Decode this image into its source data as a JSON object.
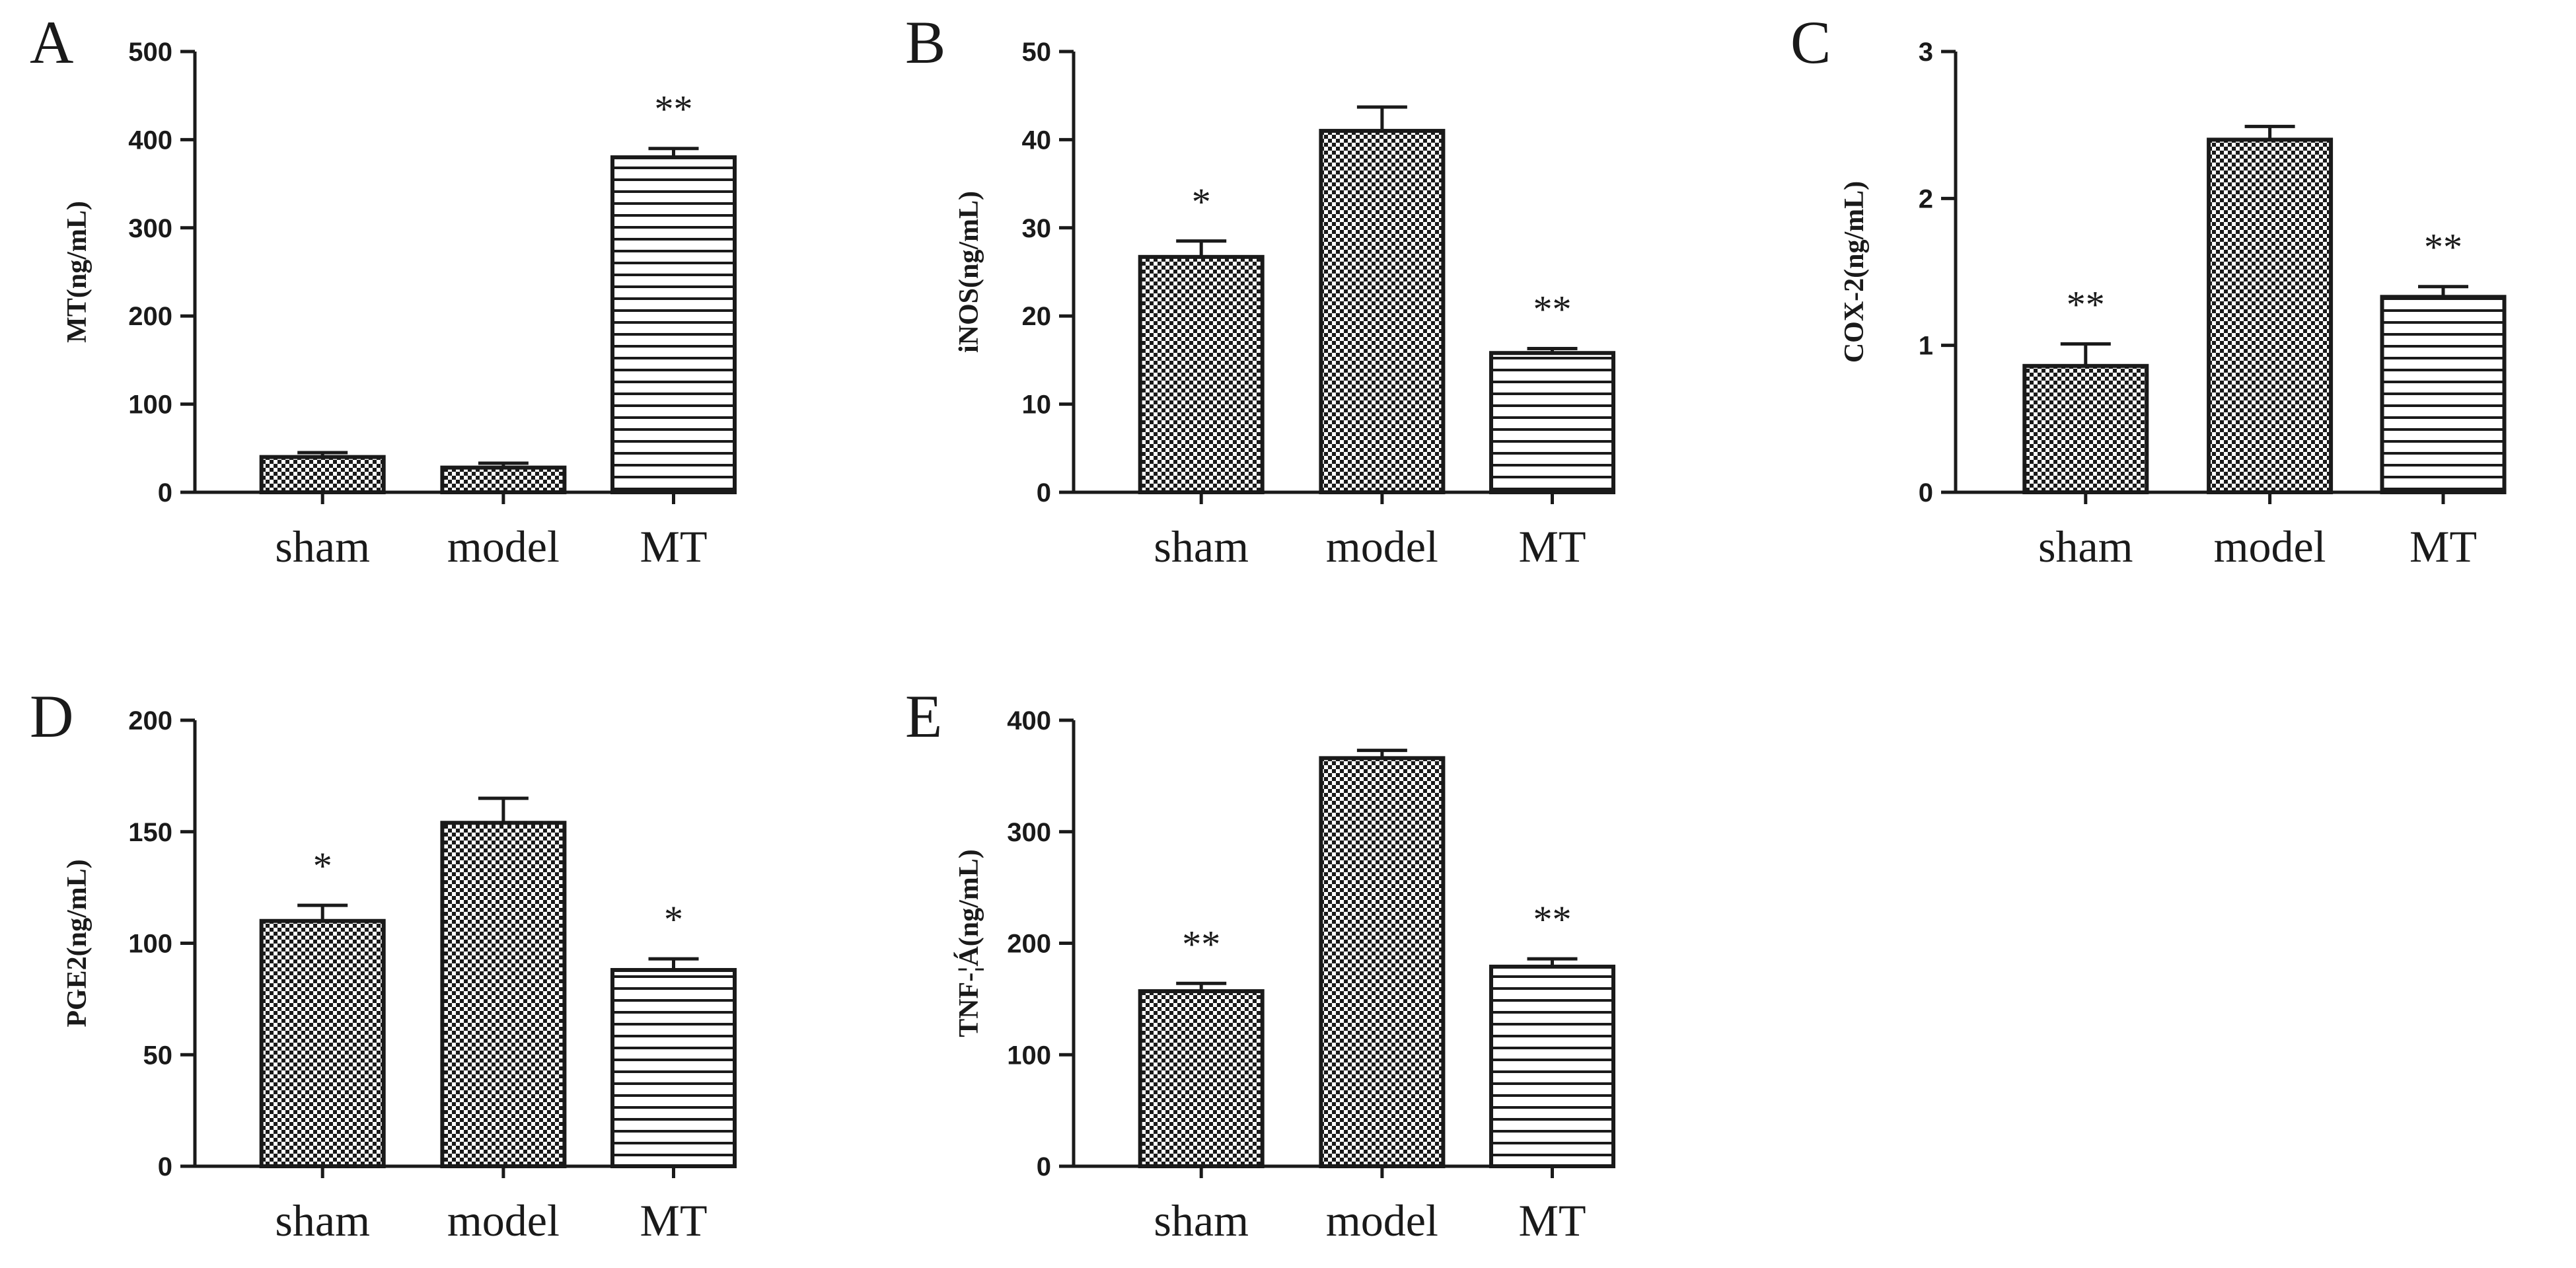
{
  "figure": {
    "panels": [
      "A",
      "B",
      "C",
      "D",
      "E"
    ]
  },
  "chart_data": [
    {
      "panel": "A",
      "type": "bar",
      "categories": [
        "sham",
        "model",
        "MT"
      ],
      "values": [
        40,
        28,
        380
      ],
      "errors": [
        5,
        5,
        10
      ],
      "annotations": [
        "",
        "",
        "**"
      ],
      "patterns": [
        "check",
        "check",
        "hlines"
      ],
      "title": "",
      "xlabel": "",
      "ylabel": "MT(ng/mL)",
      "ylim": [
        0,
        500
      ],
      "yticks": [
        0,
        100,
        200,
        300,
        400,
        500
      ]
    },
    {
      "panel": "B",
      "type": "bar",
      "categories": [
        "sham",
        "model",
        "MT"
      ],
      "values": [
        26.7,
        41,
        15.8
      ],
      "errors": [
        1.8,
        2.7,
        0.5
      ],
      "annotations": [
        "*",
        "",
        "**"
      ],
      "patterns": [
        "check",
        "check",
        "hlines"
      ],
      "title": "",
      "xlabel": "",
      "ylabel": "iNOS(ng/mL)",
      "ylim": [
        0,
        50
      ],
      "yticks": [
        0,
        10,
        20,
        30,
        40,
        50
      ]
    },
    {
      "panel": "C",
      "type": "bar",
      "categories": [
        "sham",
        "model",
        "MT"
      ],
      "values": [
        0.86,
        2.4,
        1.33
      ],
      "errors": [
        0.15,
        0.09,
        0.07
      ],
      "annotations": [
        "**",
        "",
        "**"
      ],
      "patterns": [
        "check",
        "check",
        "hlines"
      ],
      "title": "",
      "xlabel": "",
      "ylabel": "COX-2(ng/mL)",
      "ylim": [
        0,
        3
      ],
      "yticks": [
        0,
        1,
        2,
        3
      ]
    },
    {
      "panel": "D",
      "type": "bar",
      "categories": [
        "sham",
        "model",
        "MT"
      ],
      "values": [
        110,
        154,
        88
      ],
      "errors": [
        7,
        11,
        5
      ],
      "annotations": [
        "*",
        "",
        "*"
      ],
      "patterns": [
        "check",
        "check",
        "hlines"
      ],
      "title": "",
      "xlabel": "",
      "ylabel": "PGE2(ng/mL)",
      "ylim": [
        0,
        200
      ],
      "yticks": [
        0,
        50,
        100,
        150,
        200
      ]
    },
    {
      "panel": "E",
      "type": "bar",
      "categories": [
        "sham",
        "model",
        "MT"
      ],
      "values": [
        157,
        366,
        179
      ],
      "errors": [
        7,
        7,
        7
      ],
      "annotations": [
        "**",
        "",
        "**"
      ],
      "patterns": [
        "check",
        "check",
        "hlines"
      ],
      "title": "",
      "xlabel": "",
      "ylabel": "TNF-¦Á(ng/mL)",
      "ylim": [
        0,
        400
      ],
      "yticks": [
        0,
        100,
        200,
        300,
        400
      ]
    }
  ]
}
